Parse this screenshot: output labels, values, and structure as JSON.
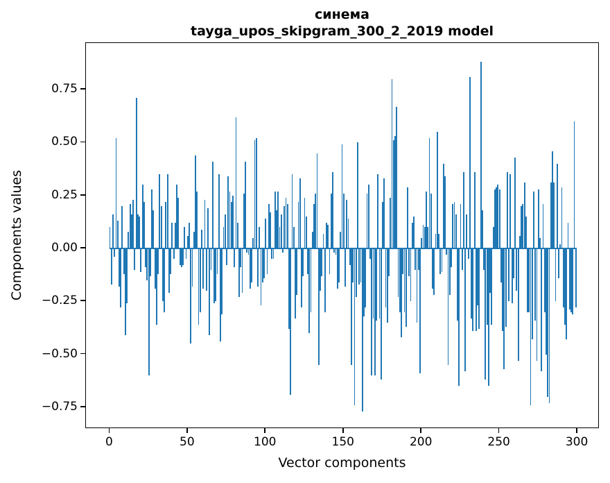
{
  "figure": {
    "title_line1": "синема",
    "title_line2": "tayga_upos_skipgram_300_2_2019 model"
  },
  "chart_data": {
    "type": "bar",
    "title": "синема — tayga_upos_skipgram_300_2_2019 model",
    "xlabel": "Vector components",
    "ylabel": "Components values",
    "legend": null,
    "grid": false,
    "bar_color": "#1f77b4",
    "background_color": "#ffffff",
    "x_ticks": [
      0,
      50,
      100,
      150,
      200,
      250,
      300
    ],
    "y_ticks": [
      0.75,
      0.5,
      0.25,
      0.0,
      -0.25,
      -0.5,
      -0.75
    ],
    "xlim": [
      -15.3,
      314.2
    ],
    "ylim": [
      -0.852,
      0.97
    ],
    "bar_width": 0.8,
    "n_components": 300,
    "values": [
      0.1,
      -0.17,
      0.16,
      -0.04,
      0.52,
      0.13,
      -0.18,
      -0.28,
      0.2,
      -0.12,
      -0.41,
      -0.26,
      0.08,
      0.21,
      0.16,
      0.23,
      -0.1,
      0.71,
      0.16,
      0.15,
      -0.11,
      0.3,
      0.22,
      -0.09,
      -0.15,
      -0.6,
      -0.13,
      0.28,
      0.18,
      -0.19,
      -0.36,
      -0.12,
      0.35,
      0.2,
      -0.25,
      -0.3,
      0.22,
      0.35,
      -0.21,
      -0.12,
      0.12,
      -0.05,
      0.12,
      0.3,
      0.24,
      -0.08,
      -0.09,
      -0.08,
      0.1,
      -0.05,
      0.06,
      0.12,
      -0.45,
      -0.18,
      0.08,
      0.44,
      0.27,
      -0.36,
      -0.3,
      0.09,
      -0.19,
      0.23,
      -0.2,
      0.19,
      -0.41,
      -0.1,
      0.41,
      -0.26,
      -0.25,
      -0.12,
      0.35,
      -0.44,
      -0.31,
      0.1,
      0.16,
      -0.08,
      0.34,
      0.27,
      0.22,
      0.25,
      -0.09,
      0.62,
      0.12,
      -0.23,
      -0.09,
      -0.21,
      0.26,
      0.41,
      -0.02,
      -0.03,
      -0.19,
      -0.16,
      0.05,
      0.51,
      0.52,
      -0.18,
      0.1,
      -0.27,
      -0.16,
      -0.14,
      0.14,
      -0.12,
      0.21,
      0.17,
      -0.05,
      -0.05,
      0.27,
      0.18,
      0.27,
      0.1,
      0.16,
      -0.02,
      0.2,
      0.24,
      0.21,
      -0.38,
      -0.69,
      0.35,
      0.1,
      -0.33,
      -0.22,
      0.22,
      0.33,
      -0.28,
      -0.13,
      0.24,
      0.15,
      -0.12,
      -0.4,
      -0.3,
      0.08,
      0.21,
      0.26,
      0.45,
      -0.55,
      -0.2,
      -0.13,
      0.07,
      -0.3,
      0.12,
      0.11,
      -0.12,
      0.26,
      0.36,
      -0.02,
      -0.03,
      -0.19,
      -0.16,
      0.08,
      0.49,
      0.26,
      -0.18,
      0.23,
      0.14,
      -0.08,
      -0.55,
      -0.16,
      -0.74,
      -0.23,
      0.5,
      -0.17,
      -0.16,
      -0.77,
      -0.32,
      -0.28,
      0.26,
      0.3,
      -0.05,
      -0.6,
      -0.33,
      -0.6,
      -0.34,
      0.35,
      -0.33,
      -0.62,
      0.22,
      0.33,
      -0.28,
      -0.35,
      -0.13,
      0.24,
      0.8,
      0.51,
      0.53,
      0.67,
      -0.23,
      -0.3,
      -0.42,
      -0.12,
      -0.3,
      -0.37,
      0.29,
      -0.13,
      -0.25,
      0.12,
      0.15,
      -0.1,
      -0.35,
      -0.1,
      -0.59,
      0.05,
      0.11,
      0.1,
      0.27,
      0.1,
      0.52,
      0.26,
      -0.19,
      -0.22,
      0.07,
      0.55,
      0.07,
      -0.12,
      -0.11,
      0.4,
      0.34,
      -0.03,
      -0.55,
      -0.22,
      -0.09,
      0.21,
      0.22,
      0.16,
      -0.34,
      -0.65,
      0.21,
      -0.1,
      0.36,
      -0.58,
      0.16,
      -0.05,
      0.81,
      -0.33,
      -0.39,
      0.36,
      -0.39,
      -0.27,
      -0.38,
      0.88,
      0.18,
      -0.1,
      -0.62,
      -0.36,
      -0.65,
      -0.21,
      -0.36,
      0.1,
      0.28,
      0.29,
      0.3,
      0.28,
      -0.16,
      -0.39,
      -0.57,
      -0.37,
      0.36,
      -0.25,
      0.35,
      -0.26,
      -0.14,
      0.43,
      -0.2,
      -0.53,
      0.06,
      0.2,
      0.21,
      0.31,
      0.15,
      -0.3,
      -0.3,
      -0.74,
      -0.43,
      0.27,
      -0.34,
      -0.53,
      0.28,
      0.05,
      -0.58,
      0.21,
      -0.3,
      -0.5,
      -0.7,
      -0.73,
      0.31,
      0.46,
      0.31,
      -0.25,
      0.4,
      -0.14,
      0.02,
      0.29,
      -0.28,
      -0.36,
      -0.43,
      0.12,
      -0.29,
      -0.3,
      -0.31,
      0.6,
      -0.28
    ]
  }
}
